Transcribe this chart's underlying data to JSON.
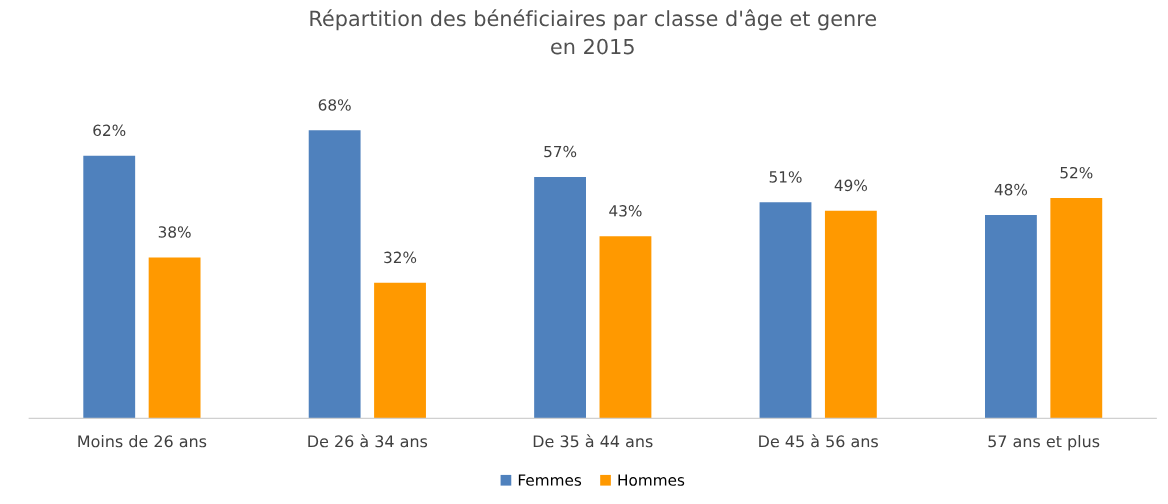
{
  "chart_data": {
    "type": "bar",
    "title": "Répartition des bénéficiaires par classe d'âge et genre\nen 2015",
    "categories": [
      "Moins de 26 ans",
      "De 26 à 34 ans",
      "De 35 à 44 ans",
      "De 45 à 56 ans",
      "57 ans et plus"
    ],
    "series": [
      {
        "name": "Femmes",
        "color": "#4f81bd",
        "values": [
          62,
          68,
          57,
          51,
          48
        ],
        "value_labels": [
          "62%",
          "68%",
          "57%",
          "51%",
          "48%"
        ]
      },
      {
        "name": "Hommes",
        "color": "#ff9900",
        "values": [
          38,
          32,
          43,
          49,
          52
        ],
        "value_labels": [
          "38%",
          "32%",
          "43%",
          "49%",
          "52%"
        ]
      }
    ],
    "grid": false,
    "legend": "bottom"
  }
}
